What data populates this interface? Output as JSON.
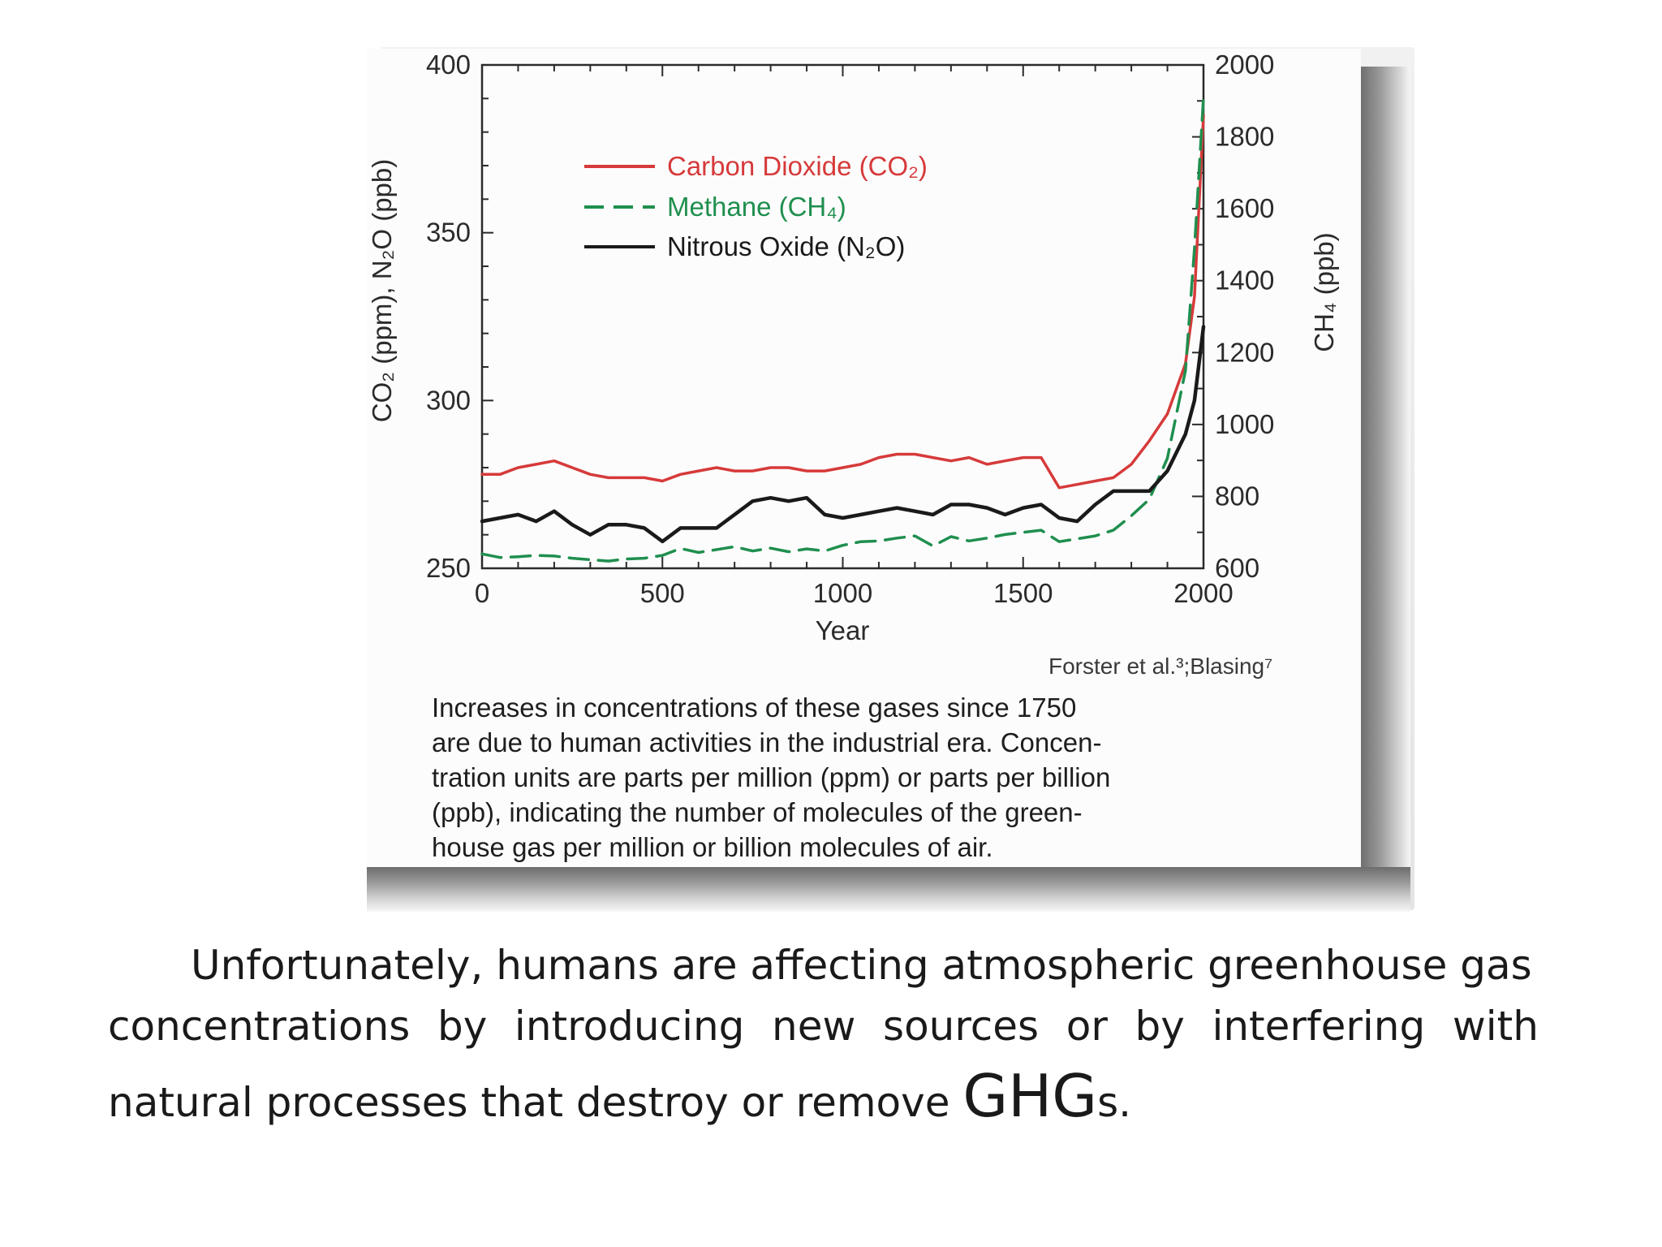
{
  "figure": {
    "source_note": "Forster et al.³;Blasing⁷",
    "caption_lines": [
      "Increases in concentrations of these gases since 1750",
      "are due to human activities in the industrial era. Concen-",
      "tration units are parts per million (ppm) or parts per billion",
      "(ppb), indicating the number of molecules of the green-",
      "house gas per million or billion molecules of air."
    ]
  },
  "chart_data": {
    "type": "line",
    "xlabel": "Year",
    "ylabel_left": "CO₂ (ppm), N₂O (ppb)",
    "ylabel_right": "CH₄ (ppb)",
    "xlim": [
      0,
      2000
    ],
    "ylim_left": [
      250,
      400
    ],
    "ylim_right": [
      600,
      2000
    ],
    "x_ticks": [
      "0",
      "500",
      "1000",
      "1500",
      "2000"
    ],
    "y_left_ticks": [
      "250",
      "300",
      "350",
      "400"
    ],
    "y_right_ticks": [
      "600",
      "800",
      "1000",
      "1200",
      "1400",
      "1600",
      "1800",
      "2000"
    ],
    "grid": false,
    "legend_position": "upper-left",
    "colors": {
      "co2": "#d63a3a",
      "ch4": "#1f8f4e",
      "n2o": "#1a1a1a"
    },
    "series": [
      {
        "name": "Carbon Dioxide (CO₂)",
        "key": "co2",
        "axis": "left",
        "style": "solid",
        "x": [
          0,
          50,
          100,
          150,
          200,
          250,
          300,
          350,
          400,
          450,
          500,
          550,
          600,
          650,
          700,
          750,
          800,
          850,
          900,
          950,
          1000,
          1050,
          1100,
          1150,
          1200,
          1250,
          1300,
          1350,
          1400,
          1450,
          1500,
          1550,
          1600,
          1650,
          1700,
          1750,
          1800,
          1850,
          1900,
          1950,
          1975,
          2000
        ],
        "y": [
          278,
          278,
          280,
          281,
          282,
          280,
          278,
          277,
          277,
          277,
          276,
          278,
          279,
          280,
          279,
          279,
          280,
          280,
          279,
          279,
          280,
          281,
          283,
          284,
          284,
          283,
          282,
          283,
          281,
          282,
          283,
          283,
          274,
          275,
          276,
          277,
          281,
          288,
          296,
          311,
          331,
          385
        ]
      },
      {
        "name": "Methane (CH₄)",
        "key": "ch4",
        "axis": "right",
        "style": "dashed",
        "x": [
          0,
          50,
          100,
          150,
          200,
          250,
          300,
          350,
          400,
          450,
          500,
          550,
          600,
          650,
          700,
          750,
          800,
          850,
          900,
          950,
          1000,
          1050,
          1100,
          1150,
          1200,
          1250,
          1300,
          1350,
          1400,
          1450,
          1500,
          1550,
          1600,
          1650,
          1700,
          1750,
          1800,
          1850,
          1900,
          1950,
          1975,
          2000
        ],
        "y": [
          640,
          630,
          632,
          636,
          634,
          628,
          624,
          620,
          626,
          628,
          636,
          655,
          644,
          652,
          660,
          648,
          656,
          646,
          654,
          648,
          664,
          674,
          676,
          684,
          690,
          662,
          688,
          676,
          684,
          694,
          700,
          706,
          674,
          682,
          690,
          706,
          746,
          792,
          906,
          1150,
          1490,
          1910
        ]
      },
      {
        "name": "Nitrous Oxide (N₂O)",
        "key": "n2o",
        "axis": "left",
        "style": "solid",
        "x": [
          0,
          50,
          100,
          150,
          200,
          250,
          300,
          350,
          400,
          450,
          500,
          550,
          600,
          650,
          700,
          750,
          800,
          850,
          900,
          950,
          1000,
          1050,
          1100,
          1150,
          1200,
          1250,
          1300,
          1350,
          1400,
          1450,
          1500,
          1550,
          1600,
          1650,
          1700,
          1750,
          1800,
          1850,
          1900,
          1950,
          1975,
          2000
        ],
        "y": [
          264,
          265,
          266,
          264,
          267,
          263,
          260,
          263,
          263,
          262,
          258,
          262,
          262,
          262,
          266,
          270,
          271,
          270,
          271,
          266,
          265,
          266,
          267,
          268,
          267,
          266,
          269,
          269,
          268,
          266,
          268,
          269,
          265,
          264,
          269,
          273,
          273,
          273,
          279,
          290,
          300,
          322
        ]
      }
    ]
  },
  "slide_text": {
    "line1": "Unfortunately, humans are affecting atmospheric greenhouse gas",
    "line2_words": [
      "concentrations",
      "by",
      "introducing",
      "new",
      "sources",
      "or",
      "by",
      "interfering",
      "with"
    ],
    "line3_prefix": "natural processes that destroy or remove ",
    "line3_emph": "GHG",
    "line3_suffix": "s."
  }
}
